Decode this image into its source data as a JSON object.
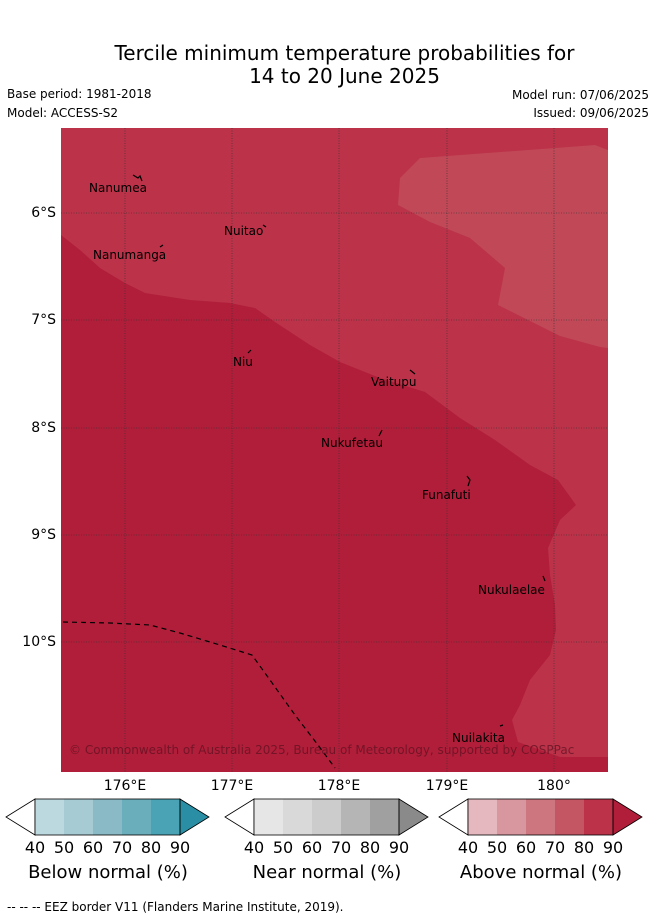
{
  "title": {
    "line1": "Tercile minimum temperature probabilities for",
    "line2": "14 to 20 June 2025"
  },
  "meta": {
    "base_period": "Base period: 1981-2018",
    "model": "Model: ACCESS-S2",
    "model_run": "Model run: 07/06/2025",
    "issued": "Issued: 09/06/2025"
  },
  "axes": {
    "lat_labels": [
      "6°S",
      "7°S",
      "8°S",
      "9°S",
      "10°S"
    ],
    "lon_labels": [
      "176°E",
      "177°E",
      "178°E",
      "179°E",
      "180°"
    ]
  },
  "places": [
    {
      "name": "Nanumea"
    },
    {
      "name": "Nuitao"
    },
    {
      "name": "Nanumanga"
    },
    {
      "name": "Niu"
    },
    {
      "name": "Vaitupu"
    },
    {
      "name": "Nukufetau"
    },
    {
      "name": "Funafuti"
    },
    {
      "name": "Nukulaelae"
    },
    {
      "name": "Nuilakita"
    }
  ],
  "copyright": "© Commonwealth of Australia 2025, Bureau of Meteorology, supported by COSPPac",
  "colorbars": [
    {
      "label": "Below normal (%)",
      "ticks": [
        "40",
        "50",
        "60",
        "70",
        "80",
        "90"
      ],
      "colors": [
        "#ffffff",
        "#bdd9e0",
        "#a6cbd3",
        "#8abac6",
        "#6aaebc",
        "#4aa3b4",
        "#2a8fa4"
      ]
    },
    {
      "label": "Near normal (%)",
      "ticks": [
        "40",
        "50",
        "60",
        "70",
        "80",
        "90"
      ],
      "colors": [
        "#ffffff",
        "#e6e6e6",
        "#d9d9d9",
        "#cccccc",
        "#b5b5b5",
        "#a0a0a0",
        "#8a8a8a"
      ]
    },
    {
      "label": "Above normal (%)",
      "ticks": [
        "40",
        "50",
        "60",
        "70",
        "80",
        "90"
      ],
      "colors": [
        "#ffffff",
        "#e4b8be",
        "#d8979f",
        "#ce7680",
        "#c45563",
        "#bb3249",
        "#b11e3a"
      ]
    }
  ],
  "footer": "--  --  -- EEZ border V11 (Flanders Marine Institute, 2019).",
  "colors": {
    "above_90": "#b11e3a",
    "above_80": "#bb3249",
    "above_70": "#c04857"
  }
}
